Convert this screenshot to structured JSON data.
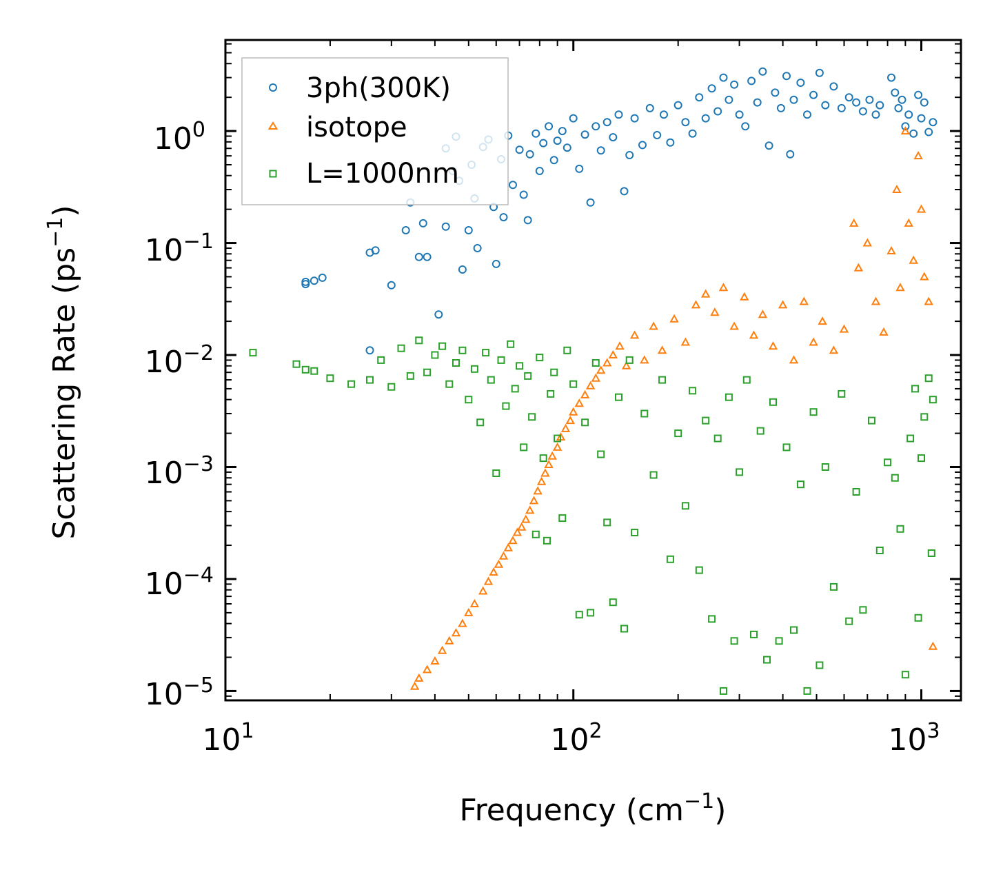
{
  "chart_data": {
    "type": "scatter",
    "title": "",
    "xlabel": "Frequency (cm",
    "xlabel_sup": "−1",
    "xlabel_tail": ")",
    "ylabel": "Scattering Rate (ps",
    "ylabel_sup": "−1",
    "ylabel_tail": ")",
    "xscale": "log",
    "yscale": "log",
    "xlim": [
      10,
      1300
    ],
    "ylim": [
      8.25e-06,
      6.5
    ],
    "grid": false,
    "legend_position": "top-left",
    "xticks": [
      {
        "base": "10",
        "exp": "1",
        "value": 10
      },
      {
        "base": "10",
        "exp": "2",
        "value": 100
      },
      {
        "base": "10",
        "exp": "3",
        "value": 1000
      }
    ],
    "yticks": [
      {
        "base": "10",
        "exp": "0",
        "value": 1
      },
      {
        "base": "10",
        "exp": "−1",
        "value": 0.1
      },
      {
        "base": "10",
        "exp": "−2",
        "value": 0.01
      },
      {
        "base": "10",
        "exp": "−3",
        "value": 0.001
      },
      {
        "base": "10",
        "exp": "−4",
        "value": 0.0001
      },
      {
        "base": "10",
        "exp": "−5",
        "value": 1e-05
      }
    ],
    "series": [
      {
        "name": "3ph(300K)",
        "color": "#1f77b4",
        "marker": "circle",
        "points": [
          [
            17,
            0.043
          ],
          [
            17,
            0.045
          ],
          [
            18,
            0.046
          ],
          [
            19,
            0.049
          ],
          [
            26,
            0.011
          ],
          [
            26,
            0.082
          ],
          [
            27,
            0.086
          ],
          [
            30,
            0.042
          ],
          [
            33,
            0.13
          ],
          [
            34,
            0.23
          ],
          [
            36,
            0.075
          ],
          [
            37,
            0.15
          ],
          [
            38,
            0.075
          ],
          [
            41,
            0.023
          ],
          [
            43,
            0.14
          ],
          [
            43,
            0.7
          ],
          [
            45,
            0.44
          ],
          [
            46,
            0.89
          ],
          [
            47,
            0.36
          ],
          [
            48,
            0.058
          ],
          [
            50,
            0.13
          ],
          [
            51,
            0.5
          ],
          [
            52,
            0.25
          ],
          [
            53,
            0.09
          ],
          [
            55,
            0.72
          ],
          [
            57,
            0.84
          ],
          [
            59,
            0.21
          ],
          [
            60,
            0.065
          ],
          [
            62,
            0.56
          ],
          [
            63,
            0.17
          ],
          [
            65,
            0.91
          ],
          [
            67,
            0.33
          ],
          [
            70,
            0.68
          ],
          [
            72,
            0.27
          ],
          [
            74,
            0.16
          ],
          [
            75,
            0.62
          ],
          [
            78,
            0.95
          ],
          [
            80,
            0.44
          ],
          [
            82,
            0.78
          ],
          [
            85,
            1.1
          ],
          [
            88,
            0.55
          ],
          [
            90,
            0.82
          ],
          [
            93,
            1.0
          ],
          [
            96,
            0.71
          ],
          [
            100,
            1.3
          ],
          [
            104,
            0.46
          ],
          [
            108,
            0.93
          ],
          [
            112,
            0.23
          ],
          [
            116,
            1.1
          ],
          [
            120,
            0.67
          ],
          [
            125,
            1.2
          ],
          [
            130,
            0.88
          ],
          [
            135,
            1.4
          ],
          [
            140,
            0.29
          ],
          [
            145,
            0.61
          ],
          [
            150,
            1.3
          ],
          [
            158,
            0.75
          ],
          [
            166,
            1.6
          ],
          [
            174,
            0.92
          ],
          [
            182,
            1.4
          ],
          [
            190,
            0.79
          ],
          [
            200,
            1.7
          ],
          [
            210,
            1.2
          ],
          [
            220,
            0.95
          ],
          [
            230,
            2.0
          ],
          [
            240,
            1.3
          ],
          [
            250,
            2.4
          ],
          [
            260,
            1.5
          ],
          [
            270,
            3.0
          ],
          [
            280,
            1.9
          ],
          [
            290,
            2.6
          ],
          [
            300,
            1.4
          ],
          [
            312,
            1.1
          ],
          [
            325,
            2.8
          ],
          [
            338,
            1.8
          ],
          [
            350,
            3.4
          ],
          [
            365,
            0.74
          ],
          [
            380,
            2.2
          ],
          [
            395,
            1.6
          ],
          [
            410,
            3.1
          ],
          [
            420,
            0.62
          ],
          [
            430,
            1.9
          ],
          [
            450,
            2.7
          ],
          [
            470,
            1.4
          ],
          [
            490,
            2.1
          ],
          [
            510,
            3.3
          ],
          [
            530,
            1.7
          ],
          [
            560,
            2.5
          ],
          [
            590,
            1.6
          ],
          [
            620,
            2.0
          ],
          [
            650,
            1.8
          ],
          [
            680,
            1.5
          ],
          [
            710,
            1.9
          ],
          [
            740,
            1.4
          ],
          [
            760,
            1.7
          ],
          [
            820,
            3.0
          ],
          [
            840,
            2.2
          ],
          [
            860,
            1.6
          ],
          [
            880,
            1.9
          ],
          [
            900,
            1.1
          ],
          [
            920,
            1.4
          ],
          [
            950,
            0.95
          ],
          [
            980,
            2.1
          ],
          [
            1000,
            1.3
          ],
          [
            1020,
            1.8
          ],
          [
            1050,
            0.98
          ],
          [
            1080,
            1.2
          ]
        ]
      },
      {
        "name": "isotope",
        "color": "#ff7f0e",
        "marker": "triangle",
        "points": [
          [
            35,
            1.1e-05
          ],
          [
            36,
            1.3e-05
          ],
          [
            38,
            1.55e-05
          ],
          [
            40,
            1.85e-05
          ],
          [
            42,
            2.3e-05
          ],
          [
            44,
            2.8e-05
          ],
          [
            46,
            3.3e-05
          ],
          [
            48,
            4e-05
          ],
          [
            50,
            5e-05
          ],
          [
            52,
            6e-05
          ],
          [
            55,
            7.8e-05
          ],
          [
            57,
            9.5e-05
          ],
          [
            59,
            0.000115
          ],
          [
            61,
            0.000135
          ],
          [
            63,
            0.00016
          ],
          [
            65,
            0.00019
          ],
          [
            67,
            0.00022
          ],
          [
            69,
            0.00026
          ],
          [
            71,
            0.00029
          ],
          [
            73,
            0.00034
          ],
          [
            75,
            0.00041
          ],
          [
            77,
            0.0005
          ],
          [
            79,
            0.00061
          ],
          [
            81,
            0.00074
          ],
          [
            83,
            0.00088
          ],
          [
            85,
            0.00105
          ],
          [
            87,
            0.00125
          ],
          [
            90,
            0.0015
          ],
          [
            92,
            0.00185
          ],
          [
            95,
            0.0022
          ],
          [
            98,
            0.0026
          ],
          [
            100,
            0.0031
          ],
          [
            104,
            0.0037
          ],
          [
            108,
            0.0044
          ],
          [
            112,
            0.0053
          ],
          [
            116,
            0.0062
          ],
          [
            120,
            0.0073
          ],
          [
            125,
            0.0085
          ],
          [
            130,
            0.01
          ],
          [
            136,
            0.012
          ],
          [
            142,
            0.008
          ],
          [
            150,
            0.015
          ],
          [
            160,
            0.009
          ],
          [
            170,
            0.018
          ],
          [
            180,
            0.011
          ],
          [
            195,
            0.021
          ],
          [
            210,
            0.013
          ],
          [
            225,
            0.028
          ],
          [
            240,
            0.035
          ],
          [
            255,
            0.024
          ],
          [
            270,
            0.04
          ],
          [
            290,
            0.018
          ],
          [
            310,
            0.033
          ],
          [
            330,
            0.015
          ],
          [
            350,
            0.023
          ],
          [
            375,
            0.012
          ],
          [
            400,
            0.028
          ],
          [
            430,
            0.009
          ],
          [
            460,
            0.03
          ],
          [
            490,
            0.013
          ],
          [
            520,
            0.02
          ],
          [
            560,
            0.011
          ],
          [
            600,
            0.017
          ],
          [
            640,
            0.15
          ],
          [
            660,
            0.06
          ],
          [
            700,
            0.1
          ],
          [
            740,
            0.03
          ],
          [
            780,
            0.016
          ],
          [
            820,
            0.085
          ],
          [
            850,
            0.3
          ],
          [
            870,
            0.04
          ],
          [
            900,
            1.0
          ],
          [
            920,
            0.15
          ],
          [
            950,
            0.07
          ],
          [
            980,
            0.6
          ],
          [
            1000,
            0.2
          ],
          [
            1020,
            0.05
          ],
          [
            1050,
            0.03
          ],
          [
            1080,
            2.5e-05
          ]
        ]
      },
      {
        "name": "L=1000nm",
        "color": "#2ca02c",
        "marker": "square",
        "points": [
          [
            12,
            0.0105
          ],
          [
            16,
            0.0083
          ],
          [
            17,
            0.0074
          ],
          [
            18,
            0.0072
          ],
          [
            20,
            0.0062
          ],
          [
            23,
            0.0055
          ],
          [
            26,
            0.006
          ],
          [
            28,
            0.009
          ],
          [
            30,
            0.0052
          ],
          [
            32,
            0.0115
          ],
          [
            34,
            0.0065
          ],
          [
            36,
            0.0135
          ],
          [
            38,
            0.007
          ],
          [
            40,
            0.01
          ],
          [
            42,
            0.012
          ],
          [
            44,
            0.0055
          ],
          [
            46,
            0.0085
          ],
          [
            48,
            0.011
          ],
          [
            50,
            0.004
          ],
          [
            52,
            0.0075
          ],
          [
            54,
            0.0025
          ],
          [
            56,
            0.0105
          ],
          [
            58,
            0.006
          ],
          [
            60,
            0.00088
          ],
          [
            62,
            0.009
          ],
          [
            64,
            0.0035
          ],
          [
            66,
            0.0125
          ],
          [
            68,
            0.005
          ],
          [
            70,
            0.008
          ],
          [
            72,
            0.0015
          ],
          [
            74,
            0.0065
          ],
          [
            76,
            0.0028
          ],
          [
            78,
            0.00025
          ],
          [
            80,
            0.0095
          ],
          [
            82,
            0.0012
          ],
          [
            84,
            0.00022
          ],
          [
            86,
            0.0045
          ],
          [
            88,
            0.007
          ],
          [
            90,
            0.0018
          ],
          [
            93,
            0.00035
          ],
          [
            96,
            0.011
          ],
          [
            100,
            0.0055
          ],
          [
            104,
            4.8e-05
          ],
          [
            108,
            0.0025
          ],
          [
            112,
            5e-05
          ],
          [
            116,
            0.0085
          ],
          [
            120,
            0.0013
          ],
          [
            125,
            0.00032
          ],
          [
            130,
            6.2e-05
          ],
          [
            135,
            0.0042
          ],
          [
            140,
            3.6e-05
          ],
          [
            145,
            0.009
          ],
          [
            150,
            0.00026
          ],
          [
            160,
            0.003
          ],
          [
            170,
            0.00085
          ],
          [
            180,
            0.006
          ],
          [
            190,
            0.00015
          ],
          [
            200,
            0.002
          ],
          [
            210,
            0.00045
          ],
          [
            220,
            0.0048
          ],
          [
            230,
            0.00012
          ],
          [
            240,
            0.0026
          ],
          [
            250,
            4.4e-05
          ],
          [
            260,
            0.0018
          ],
          [
            270,
            1e-05
          ],
          [
            280,
            0.0042
          ],
          [
            290,
            2.8e-05
          ],
          [
            300,
            0.0009
          ],
          [
            315,
            0.006
          ],
          [
            330,
            3.2e-05
          ],
          [
            345,
            0.0021
          ],
          [
            360,
            1.9e-05
          ],
          [
            375,
            0.0038
          ],
          [
            390,
            2.8e-05
          ],
          [
            410,
            0.0015
          ],
          [
            430,
            3.5e-05
          ],
          [
            450,
            0.0007
          ],
          [
            470,
            1e-05
          ],
          [
            490,
            0.0031
          ],
          [
            510,
            1.7e-05
          ],
          [
            530,
            0.001
          ],
          [
            560,
            8.5e-05
          ],
          [
            590,
            0.0045
          ],
          [
            620,
            4.2e-05
          ],
          [
            650,
            0.0006
          ],
          [
            680,
            5.3e-05
          ],
          [
            720,
            0.0026
          ],
          [
            760,
            0.00018
          ],
          [
            800,
            0.0011
          ],
          [
            840,
            0.0008
          ],
          [
            870,
            0.00028
          ],
          [
            900,
            1.4e-05
          ],
          [
            930,
            0.0018
          ],
          [
            960,
            0.005
          ],
          [
            980,
            4.5e-05
          ],
          [
            1000,
            0.0012
          ],
          [
            1020,
            0.0028
          ],
          [
            1050,
            0.0062
          ],
          [
            1070,
            0.00017
          ],
          [
            1080,
            0.004
          ]
        ]
      }
    ]
  }
}
